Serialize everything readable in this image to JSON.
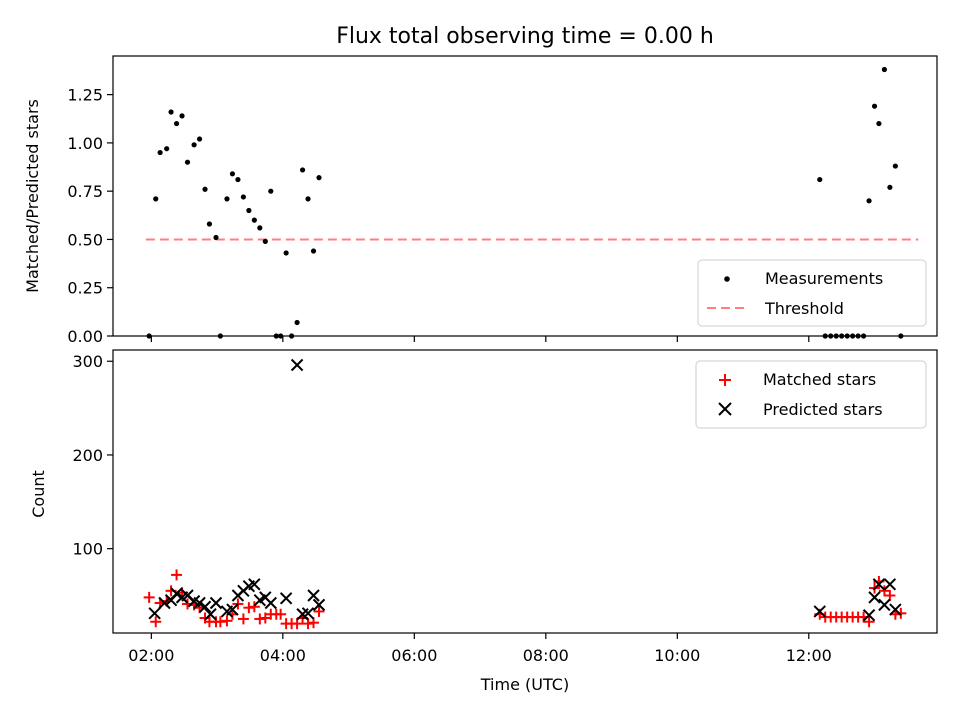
{
  "chart_data": [
    {
      "type": "scatter",
      "title": "Flux total observing time = 0.00 h",
      "ylabel": "Matched/Predicted stars",
      "xlabel": "",
      "ylim": [
        0,
        1.45
      ],
      "yticks": [
        "0.00",
        "0.25",
        "0.50",
        "0.75",
        "1.00",
        "1.25"
      ],
      "ytick_values": [
        0,
        0.25,
        0.5,
        0.75,
        1.0,
        1.25
      ],
      "legend_position": "lower-right",
      "threshold": {
        "name": "Threshold",
        "value": 0.5,
        "x_start": "01:55",
        "x_end": "13:40",
        "color": "#ff7f7f"
      },
      "series": [
        {
          "name": "Measurements",
          "color": "#000000",
          "points": [
            [
              "01:58",
              0.0
            ],
            [
              "02:04",
              0.71
            ],
            [
              "02:08",
              0.95
            ],
            [
              "02:14",
              0.97
            ],
            [
              "02:18",
              1.16
            ],
            [
              "02:23",
              1.1
            ],
            [
              "02:28",
              1.14
            ],
            [
              "02:33",
              0.9
            ],
            [
              "02:39",
              0.99
            ],
            [
              "02:44",
              1.02
            ],
            [
              "02:49",
              0.76
            ],
            [
              "02:53",
              0.58
            ],
            [
              "02:59",
              0.51
            ],
            [
              "03:03",
              0.0
            ],
            [
              "03:09",
              0.71
            ],
            [
              "03:14",
              0.84
            ],
            [
              "03:19",
              0.81
            ],
            [
              "03:24",
              0.72
            ],
            [
              "03:29",
              0.65
            ],
            [
              "03:34",
              0.6
            ],
            [
              "03:39",
              0.56
            ],
            [
              "03:44",
              0.49
            ],
            [
              "03:49",
              0.75
            ],
            [
              "03:54",
              0.0
            ],
            [
              "03:58",
              0.0
            ],
            [
              "04:03",
              0.43
            ],
            [
              "04:08",
              0.0
            ],
            [
              "04:13",
              0.07
            ],
            [
              "04:18",
              0.86
            ],
            [
              "04:23",
              0.71
            ],
            [
              "04:28",
              0.44
            ],
            [
              "04:33",
              0.82
            ],
            [
              "12:10",
              0.81
            ],
            [
              "12:15",
              0.0
            ],
            [
              "12:20",
              0.0
            ],
            [
              "12:25",
              0.0
            ],
            [
              "12:30",
              0.0
            ],
            [
              "12:35",
              0.0
            ],
            [
              "12:40",
              0.0
            ],
            [
              "12:45",
              0.0
            ],
            [
              "12:50",
              0.0
            ],
            [
              "12:55",
              0.7
            ],
            [
              "13:00",
              1.19
            ],
            [
              "13:04",
              1.1
            ],
            [
              "13:09",
              1.38
            ],
            [
              "13:14",
              0.77
            ],
            [
              "13:19",
              0.88
            ],
            [
              "13:24",
              0.0
            ]
          ]
        }
      ]
    },
    {
      "type": "scatter",
      "title": "",
      "ylabel": "Count",
      "xlabel": "Time (UTC)",
      "ylim": [
        10,
        312
      ],
      "xlim": [
        "01:25",
        "13:57"
      ],
      "yticks": [
        "100",
        "200",
        "300"
      ],
      "ytick_values": [
        100,
        200,
        300
      ],
      "xticks": [
        "02:00",
        "04:00",
        "06:00",
        "08:00",
        "10:00",
        "12:00"
      ],
      "legend_position": "upper-right",
      "series": [
        {
          "name": "Matched stars",
          "marker": "plus",
          "color": "#ff0000",
          "points": [
            [
              "01:58",
              48
            ],
            [
              "02:04",
              22
            ],
            [
              "02:08",
              42
            ],
            [
              "02:14",
              44
            ],
            [
              "02:18",
              55
            ],
            [
              "02:23",
              72
            ],
            [
              "02:28",
              53
            ],
            [
              "02:33",
              41
            ],
            [
              "02:39",
              40
            ],
            [
              "02:44",
              37
            ],
            [
              "02:49",
              26
            ],
            [
              "02:53",
              22
            ],
            [
              "02:59",
              22
            ],
            [
              "03:03",
              22
            ],
            [
              "03:09",
              23
            ],
            [
              "03:14",
              30
            ],
            [
              "03:19",
              41
            ],
            [
              "03:24",
              25
            ],
            [
              "03:29",
              37
            ],
            [
              "03:34",
              38
            ],
            [
              "03:39",
              25
            ],
            [
              "03:44",
              26
            ],
            [
              "03:49",
              30
            ],
            [
              "03:54",
              30
            ],
            [
              "03:58",
              30
            ],
            [
              "04:03",
              20
            ],
            [
              "04:08",
              20
            ],
            [
              "04:13",
              20
            ],
            [
              "04:18",
              26
            ],
            [
              "04:23",
              20
            ],
            [
              "04:28",
              21
            ],
            [
              "04:33",
              33
            ],
            [
              "12:10",
              30
            ],
            [
              "12:15",
              27
            ],
            [
              "12:20",
              27
            ],
            [
              "12:25",
              27
            ],
            [
              "12:30",
              27
            ],
            [
              "12:35",
              27
            ],
            [
              "12:40",
              27
            ],
            [
              "12:45",
              27
            ],
            [
              "12:50",
              27
            ],
            [
              "12:55",
              22
            ],
            [
              "13:00",
              58
            ],
            [
              "13:04",
              65
            ],
            [
              "13:09",
              55
            ],
            [
              "13:14",
              50
            ],
            [
              "13:19",
              30
            ],
            [
              "13:24",
              31
            ]
          ]
        },
        {
          "name": "Predicted stars",
          "marker": "x",
          "color": "#000000",
          "points": [
            [
              "02:03",
              31
            ],
            [
              "02:12",
              42
            ],
            [
              "02:18",
              45
            ],
            [
              "02:23",
              52
            ],
            [
              "02:28",
              48
            ],
            [
              "02:33",
              50
            ],
            [
              "02:39",
              44
            ],
            [
              "02:44",
              42
            ],
            [
              "02:49",
              38
            ],
            [
              "02:54",
              30
            ],
            [
              "02:59",
              42
            ],
            [
              "03:09",
              33
            ],
            [
              "03:14",
              35
            ],
            [
              "03:19",
              50
            ],
            [
              "03:24",
              55
            ],
            [
              "03:29",
              60
            ],
            [
              "03:34",
              62
            ],
            [
              "03:39",
              45
            ],
            [
              "03:44",
              48
            ],
            [
              "03:49",
              42
            ],
            [
              "04:03",
              47
            ],
            [
              "04:13",
              296
            ],
            [
              "04:18",
              30
            ],
            [
              "04:23",
              31
            ],
            [
              "04:28",
              50
            ],
            [
              "04:33",
              40
            ],
            [
              "12:10",
              33
            ],
            [
              "12:55",
              29
            ],
            [
              "13:00",
              48
            ],
            [
              "13:04",
              62
            ],
            [
              "13:09",
              40
            ],
            [
              "13:14",
              62
            ],
            [
              "13:19",
              35
            ]
          ]
        }
      ]
    }
  ]
}
